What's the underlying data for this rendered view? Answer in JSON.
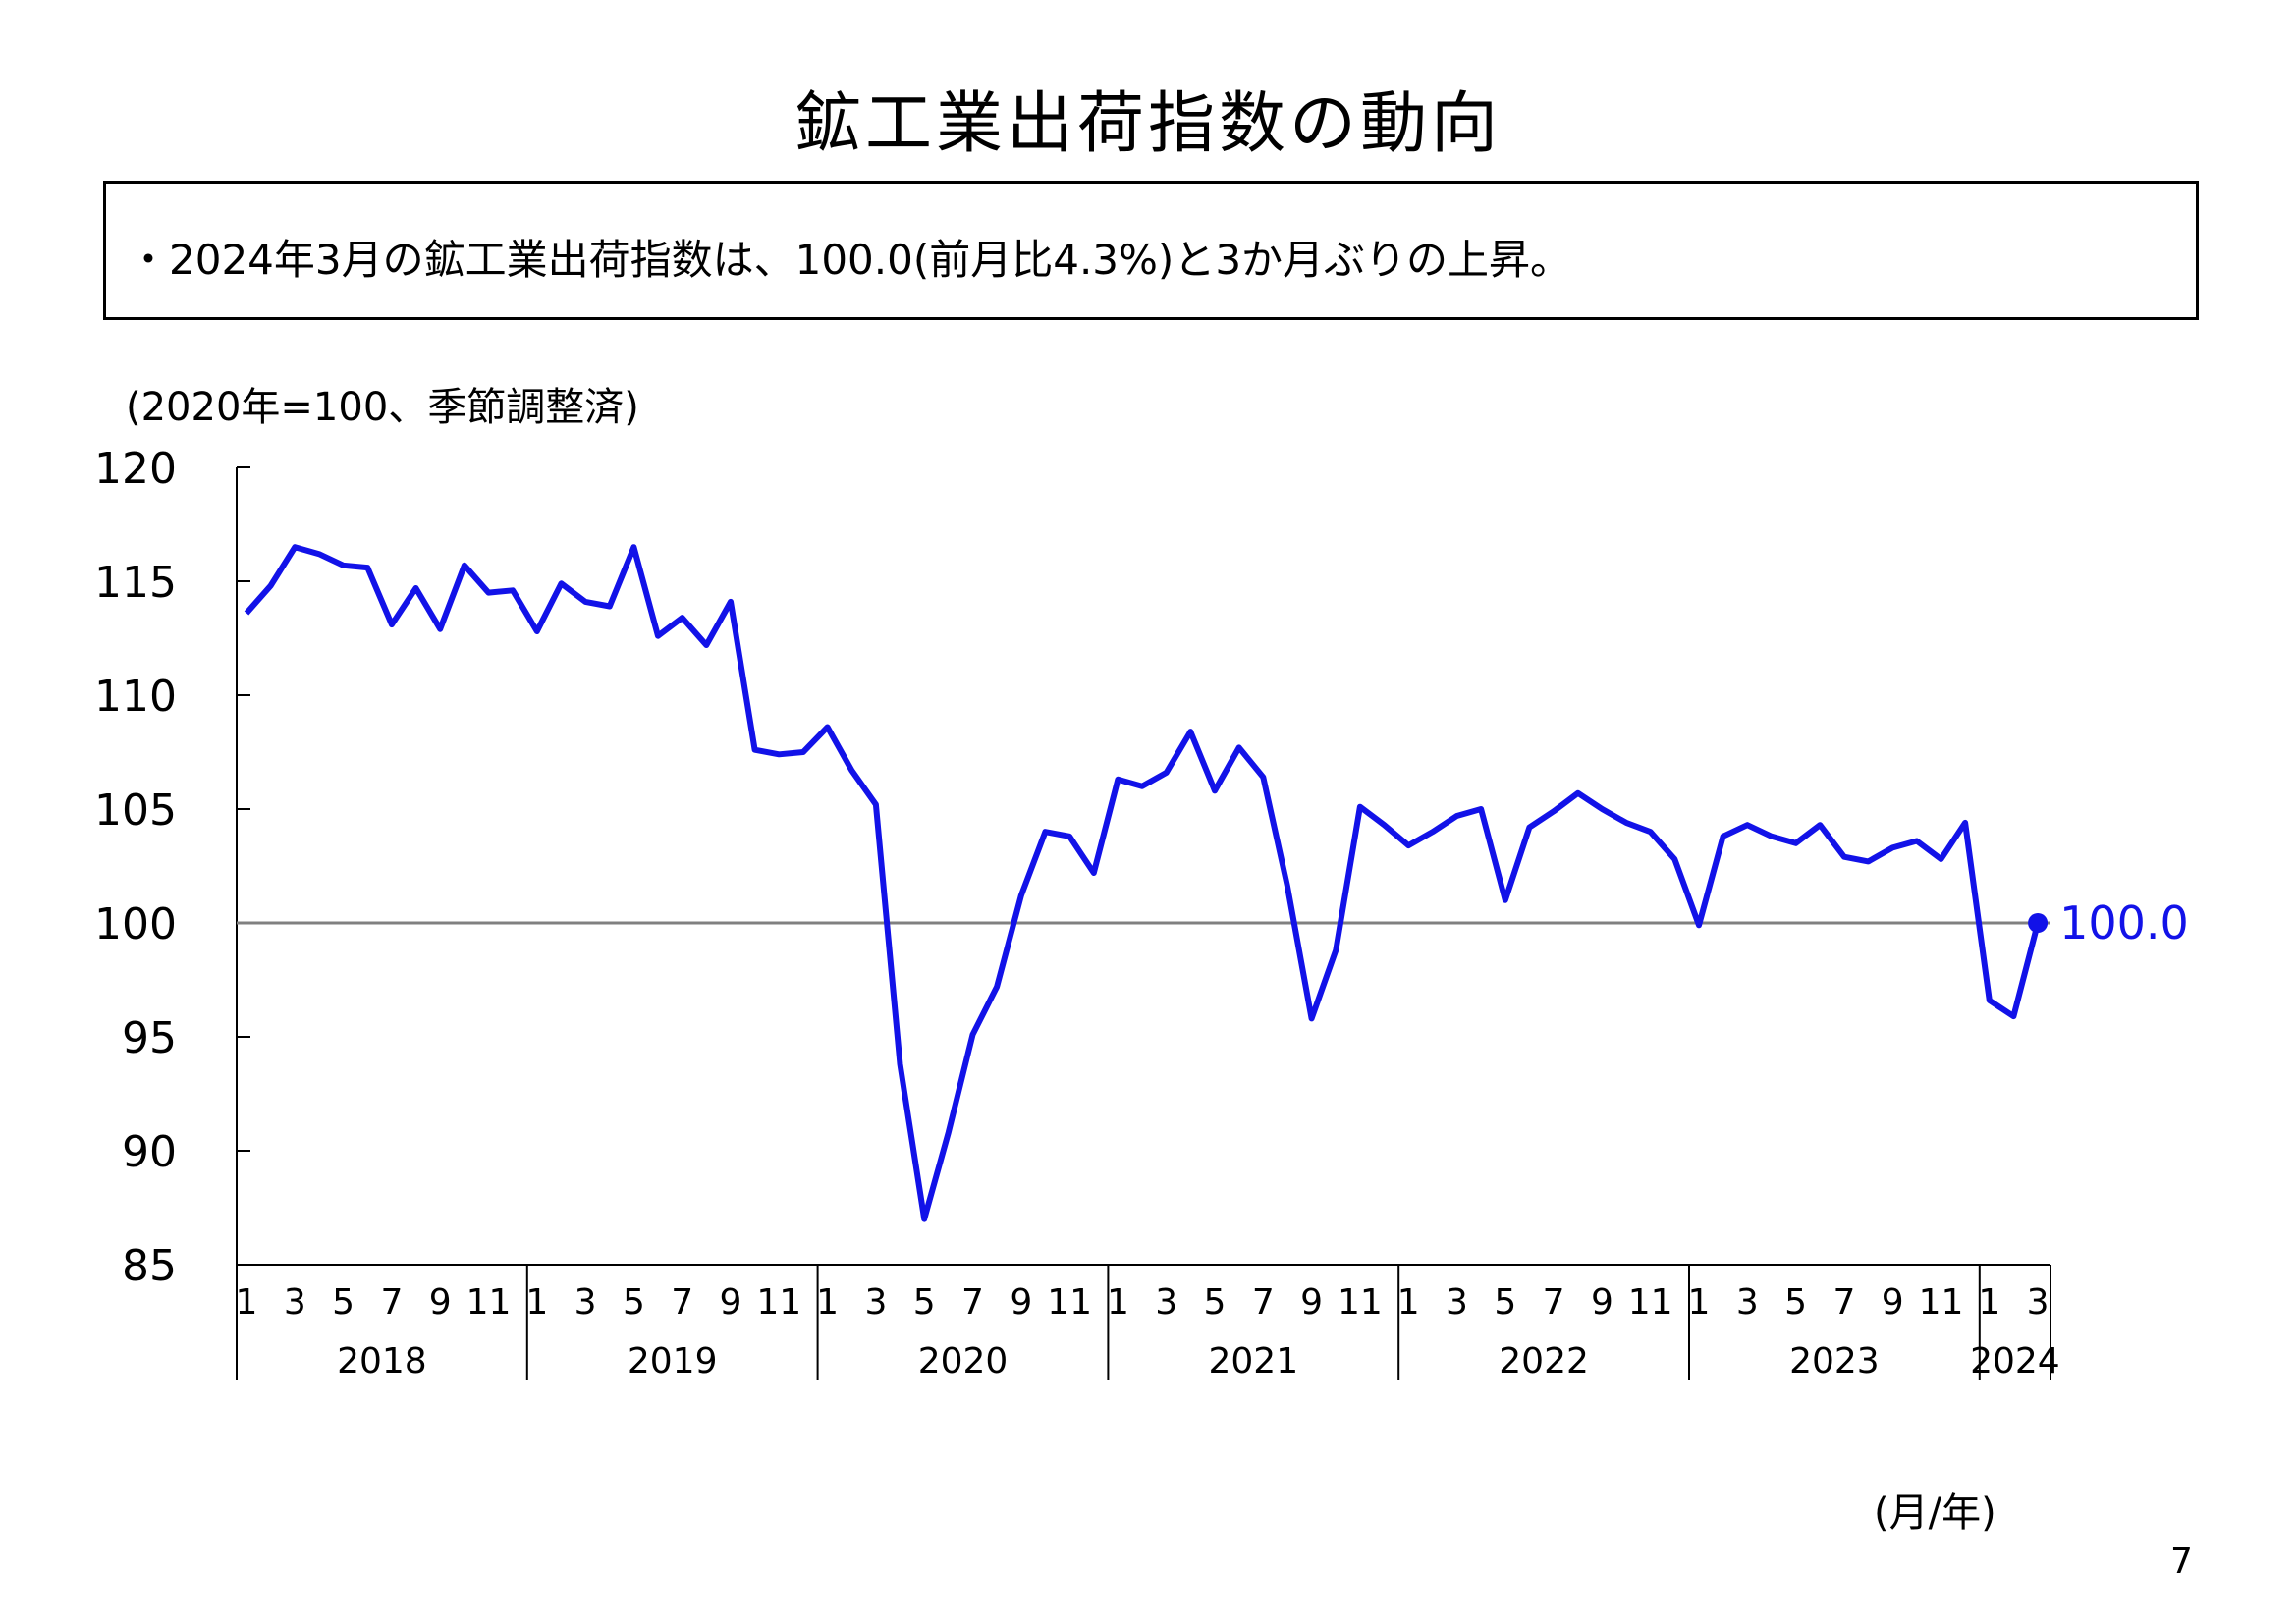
{
  "page": {
    "title": "鉱工業出荷指数の動向",
    "summary": "・2024年3月の鉱工業出荷指数は、100.0(前月比4.3%)と3か月ぶりの上昇。",
    "page_number": "7",
    "colors": {
      "line": "#1212e8",
      "baseline": "#808080",
      "axis": "#000000",
      "label": "#1212e8"
    }
  },
  "chart_data": {
    "type": "line",
    "title": "",
    "ylabel": "(2020年=100、季節調整済)",
    "xlabel": "(月/年)",
    "ylim": [
      85,
      120
    ],
    "yticks": [
      "85",
      "90",
      "95",
      "100",
      "105",
      "110",
      "115",
      "120"
    ],
    "reference_line": 100,
    "month_ticks": [
      "1",
      "3",
      "5",
      "7",
      "9",
      "11"
    ],
    "years": [
      "2018",
      "2019",
      "2020",
      "2021",
      "2022",
      "2023",
      "2024"
    ],
    "last_year_months": [
      "1",
      "3"
    ],
    "end_label": "100.0",
    "series": [
      {
        "values": [
          113.6,
          114.8,
          116.5,
          116.2,
          115.7,
          115.6,
          113.1,
          114.7,
          112.9,
          115.7,
          114.5,
          114.6,
          112.8,
          114.9,
          114.1,
          113.9,
          116.5,
          112.6,
          113.4,
          112.2,
          114.1,
          107.6,
          107.4,
          107.5,
          108.6,
          106.7,
          105.2,
          93.8,
          87.0,
          90.8,
          95.1,
          97.2,
          101.2,
          104.0,
          103.8,
          102.2,
          106.3,
          106.0,
          106.6,
          108.4,
          105.8,
          107.7,
          106.4,
          101.6,
          95.8,
          98.8,
          105.1,
          104.3,
          103.4,
          104.0,
          104.7,
          105.0,
          101.0,
          104.2,
          104.9,
          105.7,
          105.0,
          104.4,
          104.0,
          102.8,
          99.9,
          103.8,
          104.3,
          103.8,
          103.5,
          104.3,
          102.9,
          102.7,
          103.3,
          103.6,
          102.8,
          104.4,
          96.6,
          95.9,
          100.0
        ]
      }
    ]
  }
}
